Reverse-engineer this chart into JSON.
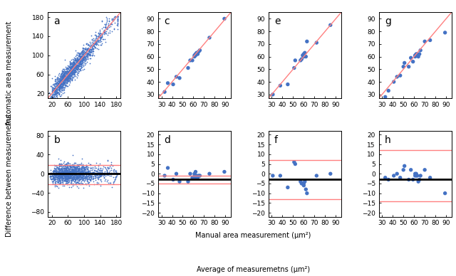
{
  "fig_width": 6.4,
  "fig_height": 3.88,
  "dot_color": "#4472C4",
  "line_color": "#FF8080",
  "mean_line_color": "#000000",
  "dot_size_large": 1.5,
  "dot_size_small": 15,
  "ylabel_top": "Automatic area measurement",
  "ylabel_bottom": "Difference between measuremetns",
  "xlabel_top": "Manual area measurement (μm²)",
  "xlabel_bottom": "Average of measuremetns (μm²)",
  "panel_a": {
    "xlim": [
      10,
      190
    ],
    "ylim": [
      10,
      190
    ],
    "xticks": [
      20,
      60,
      100,
      140,
      180
    ],
    "yticks": [
      20,
      60,
      100,
      140,
      180
    ]
  },
  "panel_b": {
    "xlim": [
      10,
      190
    ],
    "ylim": [
      -90,
      90
    ],
    "xticks": [
      20,
      60,
      100,
      140,
      180
    ],
    "yticks": [
      -80,
      -40,
      0,
      40,
      80
    ],
    "mean": 0.0,
    "upper_limit": 18.0,
    "lower_limit": -22.0
  },
  "panel_c": {
    "xlim": [
      27,
      95
    ],
    "ylim": [
      27,
      95
    ],
    "xticks": [
      30,
      40,
      50,
      60,
      70,
      80,
      90
    ],
    "yticks": [
      30,
      40,
      50,
      60,
      70,
      80,
      90
    ],
    "x": [
      33,
      36,
      41,
      44,
      47,
      55,
      57,
      59,
      61,
      61,
      62,
      62,
      63,
      64,
      65,
      66,
      75,
      89
    ],
    "y": [
      32,
      39,
      38,
      44,
      43,
      51,
      57,
      57,
      60,
      61,
      61,
      62,
      63,
      62,
      64,
      65,
      75,
      90
    ]
  },
  "panel_d": {
    "xlim": [
      27,
      95
    ],
    "ylim": [
      -22,
      22
    ],
    "xticks": [
      30,
      40,
      50,
      60,
      70,
      80,
      90
    ],
    "yticks": [
      -20,
      -15,
      -10,
      -5,
      0,
      5,
      10,
      15,
      20
    ],
    "mean": -3.0,
    "upper_limit": -1.0,
    "lower_limit": -5.0,
    "x": [
      33,
      36,
      41,
      44,
      47,
      55,
      57,
      59,
      61,
      61,
      62,
      62,
      63,
      64,
      65,
      66,
      75,
      89
    ],
    "y": [
      -1,
      3,
      -3,
      0,
      -4,
      -4,
      0,
      -2,
      -1,
      0,
      -2,
      1,
      -1,
      -2,
      -1,
      -1,
      0,
      1
    ]
  },
  "panel_e": {
    "xlim": [
      27,
      95
    ],
    "ylim": [
      27,
      95
    ],
    "xticks": [
      30,
      40,
      50,
      60,
      70,
      80,
      90
    ],
    "yticks": [
      30,
      40,
      50,
      60,
      70,
      80,
      90
    ],
    "x": [
      31,
      38,
      45,
      51,
      52,
      57,
      58,
      59,
      60,
      60,
      61,
      62,
      63,
      72,
      85
    ],
    "y": [
      30,
      37,
      38,
      51,
      57,
      57,
      58,
      61,
      60,
      62,
      63,
      60,
      72,
      71,
      85
    ]
  },
  "panel_f": {
    "xlim": [
      27,
      95
    ],
    "ylim": [
      -22,
      22
    ],
    "xticks": [
      30,
      40,
      50,
      60,
      70,
      80,
      90
    ],
    "yticks": [
      -20,
      -15,
      -10,
      -5,
      0,
      5,
      10,
      15,
      20
    ],
    "mean": -3.0,
    "upper_limit": 7.0,
    "lower_limit": -13.0,
    "x": [
      31,
      38,
      45,
      51,
      52,
      57,
      58,
      59,
      60,
      60,
      61,
      62,
      63,
      72,
      85
    ],
    "y": [
      -1,
      -1,
      -7,
      6,
      5,
      -4,
      -5,
      -5,
      -5,
      -6,
      -4,
      -8,
      -10,
      -1,
      0
    ]
  },
  "panel_g": {
    "xlim": [
      27,
      95
    ],
    "ylim": [
      27,
      95
    ],
    "xticks": [
      30,
      40,
      50,
      60,
      70,
      80,
      90
    ],
    "yticks": [
      30,
      40,
      50,
      60,
      70,
      80,
      90
    ],
    "x": [
      33,
      36,
      41,
      44,
      47,
      50,
      51,
      55,
      57,
      59,
      61,
      61,
      62,
      62,
      63,
      64,
      65,
      66,
      70,
      75,
      89
    ],
    "y": [
      28,
      33,
      40,
      44,
      45,
      52,
      55,
      52,
      59,
      56,
      60,
      61,
      61,
      62,
      62,
      60,
      62,
      65,
      72,
      73,
      79
    ]
  },
  "panel_h": {
    "xlim": [
      27,
      95
    ],
    "ylim": [
      -22,
      22
    ],
    "xticks": [
      30,
      40,
      50,
      60,
      70,
      80,
      90
    ],
    "yticks": [
      -20,
      -15,
      -10,
      -5,
      0,
      5,
      10,
      15,
      20
    ],
    "mean": -3.0,
    "upper_limit": 12.0,
    "lower_limit": -14.0,
    "x": [
      33,
      36,
      41,
      44,
      47,
      50,
      51,
      55,
      57,
      59,
      61,
      61,
      62,
      62,
      63,
      64,
      65,
      66,
      70,
      75,
      89
    ],
    "y": [
      -2,
      -3,
      -1,
      0,
      -2,
      2,
      4,
      -3,
      2,
      -3,
      -1,
      0,
      -1,
      0,
      -1,
      -4,
      -3,
      -1,
      2,
      -2,
      -10
    ]
  }
}
